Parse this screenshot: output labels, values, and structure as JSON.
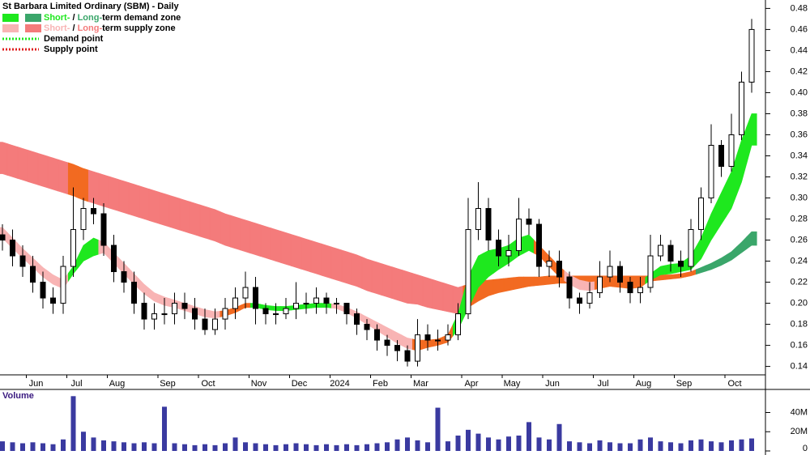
{
  "chart_data": {
    "type": "candlestick",
    "title": "St Barbara Limited Ordinary (SBM) - Daily",
    "categories": [
      null,
      null,
      null,
      "Jun",
      null,
      null,
      null,
      "Jul",
      null,
      null,
      null,
      "Aug",
      null,
      null,
      null,
      null,
      "Sep",
      null,
      null,
      null,
      "Oct",
      null,
      null,
      null,
      null,
      "Nov",
      null,
      null,
      null,
      "Dec",
      null,
      null,
      null,
      "2024",
      null,
      null,
      null,
      "Feb",
      null,
      null,
      null,
      "Mar",
      null,
      null,
      null,
      null,
      "Apr",
      null,
      null,
      null,
      "May",
      null,
      null,
      null,
      "Jun",
      null,
      null,
      null,
      null,
      "Jul",
      null,
      null,
      null,
      "Aug",
      null,
      null,
      null,
      "Sep",
      null,
      null,
      null,
      null,
      "Oct",
      null,
      null
    ],
    "open": [
      0.265,
      0.26,
      0.245,
      0.235,
      0.22,
      0.205,
      0.2,
      0.235,
      0.27,
      0.29,
      0.285,
      0.255,
      0.23,
      0.22,
      0.2,
      0.185,
      0.19,
      0.19,
      0.2,
      0.195,
      0.185,
      0.175,
      0.185,
      0.195,
      0.205,
      0.215,
      0.195,
      0.19,
      0.19,
      0.195,
      0.2,
      0.2,
      0.205,
      0.2,
      0.2,
      0.19,
      0.18,
      0.175,
      0.165,
      0.16,
      0.155,
      0.145,
      0.17,
      0.165,
      0.165,
      0.17,
      0.19,
      0.27,
      0.29,
      0.26,
      0.245,
      0.25,
      0.28,
      0.275,
      0.235,
      0.24,
      0.225,
      0.205,
      0.2,
      0.21,
      0.225,
      0.235,
      0.22,
      0.21,
      0.215,
      0.245,
      0.255,
      0.24,
      0.235,
      0.27,
      0.3,
      0.35,
      0.33,
      0.36,
      0.41
    ],
    "high": [
      0.275,
      0.27,
      0.255,
      0.245,
      0.23,
      0.215,
      0.245,
      0.31,
      0.3,
      0.3,
      0.295,
      0.265,
      0.24,
      0.23,
      0.21,
      0.2,
      0.205,
      0.21,
      0.21,
      0.205,
      0.195,
      0.195,
      0.205,
      0.215,
      0.23,
      0.225,
      0.2,
      0.2,
      0.205,
      0.22,
      0.21,
      0.215,
      0.21,
      0.205,
      0.2,
      0.195,
      0.185,
      0.18,
      0.17,
      0.165,
      0.16,
      0.185,
      0.18,
      0.175,
      0.18,
      0.2,
      0.3,
      0.315,
      0.3,
      0.27,
      0.265,
      0.3,
      0.29,
      0.28,
      0.25,
      0.25,
      0.23,
      0.21,
      0.22,
      0.24,
      0.25,
      0.24,
      0.225,
      0.225,
      0.265,
      0.265,
      0.26,
      0.25,
      0.28,
      0.31,
      0.37,
      0.355,
      0.38,
      0.42,
      0.47
    ],
    "low": [
      0.25,
      0.235,
      0.225,
      0.21,
      0.195,
      0.19,
      0.19,
      0.225,
      0.26,
      0.275,
      0.245,
      0.22,
      0.21,
      0.19,
      0.175,
      0.175,
      0.18,
      0.18,
      0.185,
      0.175,
      0.17,
      0.17,
      0.175,
      0.185,
      0.195,
      0.18,
      0.18,
      0.18,
      0.185,
      0.185,
      0.19,
      0.19,
      0.19,
      0.19,
      0.18,
      0.17,
      0.165,
      0.155,
      0.15,
      0.145,
      0.14,
      0.14,
      0.155,
      0.155,
      0.16,
      0.165,
      0.185,
      0.26,
      0.25,
      0.235,
      0.235,
      0.245,
      0.265,
      0.225,
      0.225,
      0.215,
      0.195,
      0.19,
      0.195,
      0.205,
      0.22,
      0.21,
      0.2,
      0.2,
      0.21,
      0.24,
      0.23,
      0.225,
      0.23,
      0.26,
      0.295,
      0.32,
      0.325,
      0.355,
      0.4
    ],
    "close": [
      0.26,
      0.245,
      0.235,
      0.22,
      0.205,
      0.2,
      0.235,
      0.27,
      0.29,
      0.285,
      0.255,
      0.23,
      0.22,
      0.2,
      0.185,
      0.19,
      0.19,
      0.2,
      0.195,
      0.185,
      0.175,
      0.185,
      0.195,
      0.205,
      0.215,
      0.195,
      0.19,
      0.19,
      0.195,
      0.2,
      0.2,
      0.205,
      0.2,
      0.2,
      0.19,
      0.18,
      0.175,
      0.165,
      0.16,
      0.155,
      0.145,
      0.17,
      0.165,
      0.165,
      0.17,
      0.19,
      0.27,
      0.29,
      0.26,
      0.245,
      0.25,
      0.28,
      0.275,
      0.235,
      0.24,
      0.225,
      0.205,
      0.2,
      0.21,
      0.225,
      0.235,
      0.22,
      0.21,
      0.215,
      0.245,
      0.255,
      0.24,
      0.235,
      0.27,
      0.3,
      0.35,
      0.33,
      0.36,
      0.41,
      0.46
    ],
    "ylim": [
      0.132,
      0.488
    ],
    "yticks": [
      0.14,
      0.16,
      0.18,
      {
        "value": 0.2,
        "label": "0.20"
      },
      0.22,
      0.24,
      0.26,
      0.28,
      {
        "value": 0.3,
        "label": "0.30"
      },
      0.32,
      0.34,
      0.36,
      0.38,
      {
        "value": 0.4,
        "label": "0.40"
      },
      0.42,
      0.44,
      0.46,
      0.48
    ],
    "long_zone": {
      "upper": [
        0.353,
        0.35,
        0.347,
        0.344,
        0.341,
        0.338,
        0.335,
        0.332,
        0.328,
        0.325,
        0.322,
        0.319,
        0.316,
        0.313,
        0.31,
        0.307,
        0.304,
        0.301,
        0.298,
        0.295,
        0.292,
        0.289,
        0.285,
        0.282,
        0.279,
        0.276,
        0.273,
        0.27,
        0.267,
        0.264,
        0.261,
        0.258,
        0.255,
        0.252,
        0.249,
        0.246,
        0.242,
        0.239,
        0.236,
        0.233,
        0.23,
        0.227,
        0.224,
        0.221,
        0.218,
        0.215,
        0.218,
        0.221,
        0.222,
        0.223,
        0.224,
        0.225,
        0.225,
        0.225,
        0.226,
        0.226,
        0.226,
        0.226,
        0.226,
        0.226,
        0.226,
        0.226,
        0.226,
        0.226,
        0.226,
        0.227,
        0.227,
        0.228,
        0.23,
        0.234,
        0.238,
        0.243,
        0.249,
        0.258,
        0.268
      ],
      "lower": [
        0.323,
        0.32,
        0.317,
        0.314,
        0.311,
        0.308,
        0.305,
        0.302,
        0.298,
        0.295,
        0.292,
        0.289,
        0.286,
        0.283,
        0.28,
        0.277,
        0.274,
        0.271,
        0.268,
        0.265,
        0.262,
        0.259,
        0.255,
        0.252,
        0.249,
        0.246,
        0.243,
        0.24,
        0.237,
        0.234,
        0.231,
        0.228,
        0.225,
        0.222,
        0.219,
        0.216,
        0.212,
        0.209,
        0.206,
        0.203,
        0.2,
        0.199,
        0.196,
        0.194,
        0.192,
        0.19,
        0.196,
        0.202,
        0.207,
        0.21,
        0.212,
        0.214,
        0.216,
        0.217,
        0.218,
        0.219,
        0.219,
        0.219,
        0.219,
        0.22,
        0.22,
        0.22,
        0.22,
        0.22,
        0.221,
        0.222,
        0.223,
        0.224,
        0.226,
        0.229,
        0.232,
        0.236,
        0.241,
        0.248,
        0.255
      ],
      "colors": [
        "#f47b7b",
        "#f47b7b",
        "#f47b7b",
        "#f47b7b",
        "#f47b7b",
        "#f47b7b",
        "#f47b7b",
        "#f26a21",
        "#f26a21",
        "#f47b7b",
        "#f47b7b",
        "#f47b7b",
        "#f47b7b",
        "#f47b7b",
        "#f47b7b",
        "#f47b7b",
        "#f47b7b",
        "#f47b7b",
        "#f47b7b",
        "#f47b7b",
        "#f47b7b",
        "#f47b7b",
        "#f47b7b",
        "#f47b7b",
        "#f47b7b",
        "#f47b7b",
        "#f47b7b",
        "#f47b7b",
        "#f47b7b",
        "#f47b7b",
        "#f47b7b",
        "#f47b7b",
        "#f47b7b",
        "#f47b7b",
        "#f47b7b",
        "#f47b7b",
        "#f47b7b",
        "#f47b7b",
        "#f47b7b",
        "#f47b7b",
        "#f47b7b",
        "#f47b7b",
        "#f47b7b",
        "#f47b7b",
        "#f47b7b",
        "#f47b7b",
        "#f26a21",
        "#f26a21",
        "#f26a21",
        "#f26a21",
        "#f26a21",
        "#f26a21",
        "#f26a21",
        "#f26a21",
        "#f26a21",
        "#f26a21",
        "#f26a21",
        "#f26a21",
        "#f26a21",
        "#f26a21",
        "#f26a21",
        "#f26a21",
        "#f26a21",
        "#f26a21",
        "#f26a21",
        "#f26a21",
        "#f26a21",
        "#f26a21",
        "#f26a21",
        "#3aa66a",
        "#3aa66a",
        "#3aa66a",
        "#3aa66a",
        "#3aa66a",
        "#3aa66a"
      ]
    },
    "short_zone": {
      "upper": [
        0.272,
        0.262,
        0.252,
        0.243,
        0.234,
        0.227,
        0.222,
        0.235,
        0.255,
        0.262,
        0.258,
        0.248,
        0.238,
        0.228,
        0.218,
        0.21,
        0.206,
        0.203,
        0.2,
        0.197,
        0.194,
        0.192,
        0.193,
        0.196,
        0.2,
        0.2,
        0.198,
        0.197,
        0.197,
        0.198,
        0.199,
        0.2,
        0.2,
        0.199,
        0.196,
        0.192,
        0.187,
        0.182,
        0.177,
        0.172,
        0.167,
        0.165,
        0.165,
        0.166,
        0.17,
        0.19,
        0.225,
        0.245,
        0.25,
        0.252,
        0.255,
        0.262,
        0.265,
        0.255,
        0.245,
        0.235,
        0.227,
        0.222,
        0.22,
        0.221,
        0.222,
        0.221,
        0.22,
        0.221,
        0.228,
        0.235,
        0.237,
        0.238,
        0.245,
        0.262,
        0.285,
        0.305,
        0.325,
        0.355,
        0.38
      ],
      "lower": [
        0.262,
        0.252,
        0.243,
        0.234,
        0.225,
        0.218,
        0.214,
        0.228,
        0.24,
        0.245,
        0.248,
        0.238,
        0.228,
        0.218,
        0.209,
        0.202,
        0.198,
        0.196,
        0.193,
        0.19,
        0.187,
        0.186,
        0.188,
        0.191,
        0.196,
        0.196,
        0.194,
        0.193,
        0.193,
        0.194,
        0.195,
        0.196,
        0.196,
        0.195,
        0.191,
        0.186,
        0.18,
        0.174,
        0.168,
        0.162,
        0.157,
        0.155,
        0.158,
        0.16,
        0.163,
        0.175,
        0.195,
        0.215,
        0.225,
        0.232,
        0.238,
        0.245,
        0.25,
        0.245,
        0.235,
        0.225,
        0.218,
        0.213,
        0.212,
        0.214,
        0.216,
        0.215,
        0.214,
        0.215,
        0.222,
        0.227,
        0.228,
        0.23,
        0.232,
        0.242,
        0.26,
        0.275,
        0.29,
        0.315,
        0.35
      ],
      "colors": [
        "#f8b4b4",
        "#f8b4b4",
        "#f8b4b4",
        "#f8b4b4",
        "#f8b4b4",
        "#f8b4b4",
        "#f8b4b4",
        "#1ee81e",
        "#1ee81e",
        "#1ee81e",
        "#f8b4b4",
        "#f8b4b4",
        "#f8b4b4",
        "#f8b4b4",
        "#f8b4b4",
        "#f8b4b4",
        "#f8b4b4",
        "#f8b4b4",
        "#f8b4b4",
        "#f8b4b4",
        "#f8b4b4",
        "#f8b4b4",
        "#f26a21",
        "#f26a21",
        "#f26a21",
        "#1ee81e",
        "#1ee81e",
        "#1ee81e",
        "#1ee81e",
        "#1ee81e",
        "#1ee81e",
        "#1ee81e",
        "#1ee81e",
        "#f8b4b4",
        "#f8b4b4",
        "#f8b4b4",
        "#f8b4b4",
        "#f8b4b4",
        "#f8b4b4",
        "#f8b4b4",
        "#f8b4b4",
        "#f26a21",
        "#f26a21",
        "#f26a21",
        "#f26a21",
        "#1ee81e",
        "#1ee81e",
        "#1ee81e",
        "#1ee81e",
        "#1ee81e",
        "#1ee81e",
        "#1ee81e",
        "#1ee81e",
        "#f26a21",
        "#f26a21",
        "#f26a21",
        "#f8b4b4",
        "#f8b4b4",
        "#f8b4b4",
        "#f26a21",
        "#f26a21",
        "#f26a21",
        "#f26a21",
        "#f26a21",
        "#1ee81e",
        "#1ee81e",
        "#1ee81e",
        "#1ee81e",
        "#1ee81e",
        "#1ee81e",
        "#1ee81e",
        "#1ee81e",
        "#1ee81e",
        "#1ee81e",
        "#1ee81e"
      ]
    },
    "legend": [
      {
        "swatches": [
          "#1ee81e",
          "#3aa66a"
        ],
        "parts": [
          {
            "text": "Short-",
            "color": "#1ee81e"
          },
          {
            "text": " / ",
            "color": "#000000"
          },
          {
            "text": "Long-",
            "color": "#3aa66a"
          },
          {
            "text": "term demand zone",
            "color": "#000000"
          }
        ]
      },
      {
        "swatches": [
          "#f8b4b4",
          "#f47b7b"
        ],
        "parts": [
          {
            "text": "Short-",
            "color": "#f8b4b4"
          },
          {
            "text": " / ",
            "color": "#000000"
          },
          {
            "text": "Long-",
            "color": "#f47b7b"
          },
          {
            "text": "term supply zone",
            "color": "#000000"
          }
        ]
      },
      {
        "line": "#1ee81e",
        "parts": [
          {
            "text": "Demand point",
            "color": "#000000"
          }
        ]
      },
      {
        "line": "#e02020",
        "parts": [
          {
            "text": "Supply point",
            "color": "#000000"
          }
        ]
      }
    ],
    "volume": {
      "label": "Volume",
      "color": "#3a3aa0",
      "values": [
        10,
        9,
        8,
        9,
        8,
        7,
        12,
        57,
        20,
        14,
        11,
        10,
        9,
        8,
        9,
        8,
        46,
        8,
        7,
        6,
        7,
        6,
        8,
        14,
        9,
        8,
        7,
        6,
        7,
        8,
        7,
        6,
        7,
        6,
        7,
        6,
        7,
        8,
        9,
        12,
        14,
        11,
        9,
        45,
        10,
        16,
        22,
        18,
        14,
        12,
        15,
        16,
        30,
        14,
        12,
        28,
        10,
        9,
        8,
        11,
        9,
        8,
        8,
        12,
        14,
        10,
        9,
        8,
        11,
        12,
        10,
        9,
        11,
        12,
        13
      ],
      "ylim": [
        0,
        64
      ],
      "yticks": [
        0,
        {
          "value": 20,
          "label": "20M"
        },
        {
          "value": 40,
          "label": "40M"
        }
      ]
    }
  }
}
